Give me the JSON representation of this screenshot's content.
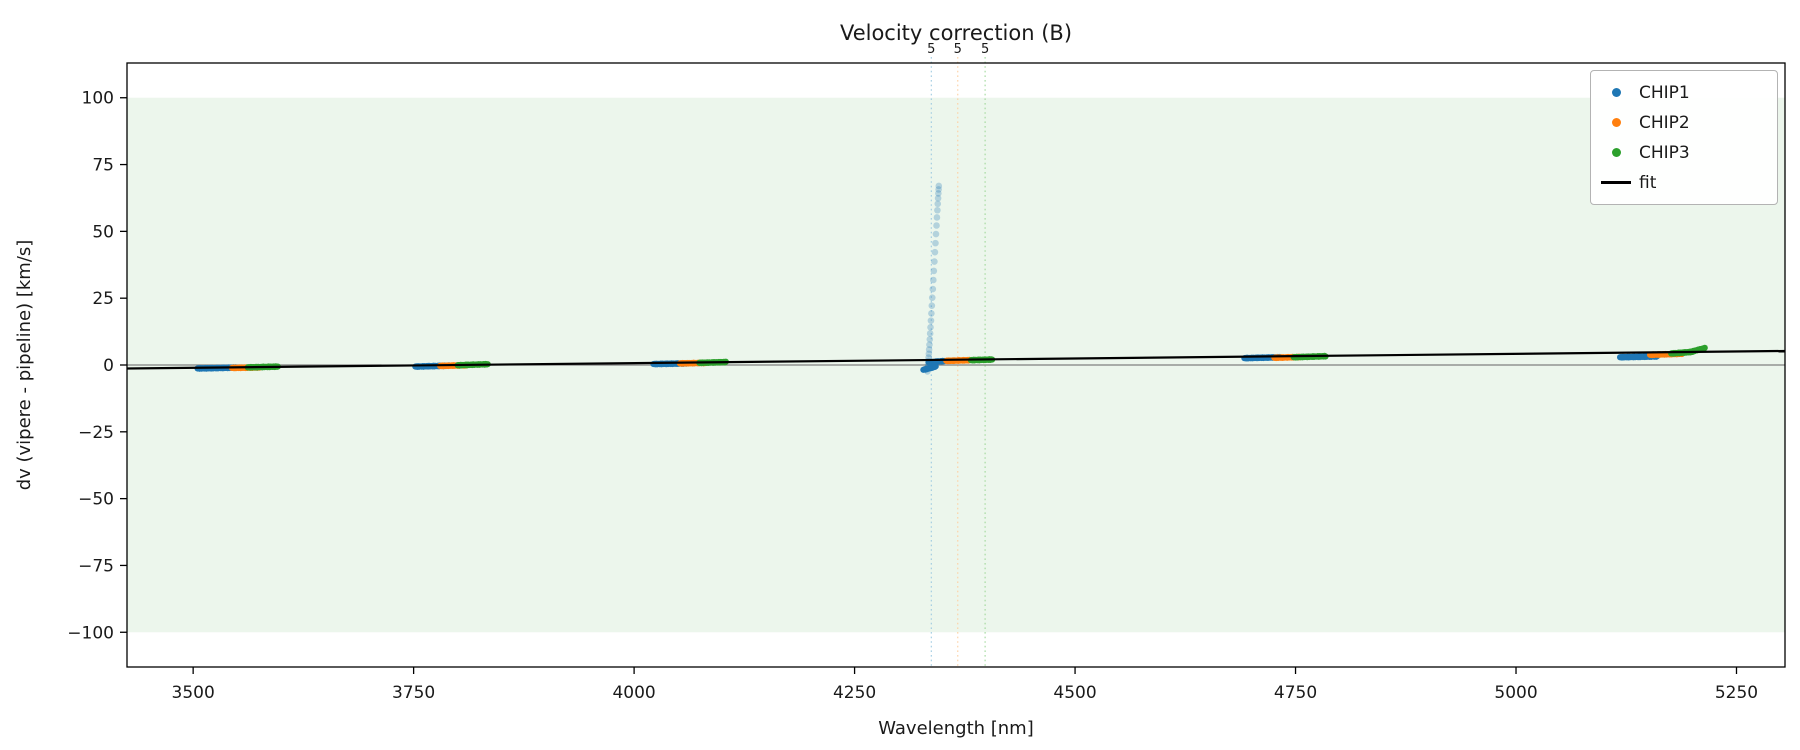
{
  "chart_data": {
    "type": "scatter",
    "title": "Velocity correction (B)",
    "xlabel": "Wavelength [nm]",
    "ylabel": "dv (vipere - pipeline) [km/s]",
    "xlim": [
      3425,
      5305
    ],
    "ylim": [
      -113,
      113
    ],
    "xticks": [
      3500,
      3750,
      4000,
      4250,
      4500,
      4750,
      5000,
      5250
    ],
    "yticks": [
      -100,
      -75,
      -50,
      -25,
      0,
      25,
      50,
      75,
      100
    ],
    "grid": false,
    "legend_position": "upper right",
    "background_band": {
      "ymin": -100,
      "ymax": 100,
      "color": "#ecf6ec"
    },
    "zero_line": {
      "y": 0,
      "color": "#808080"
    },
    "fit_line": {
      "name": "fit",
      "color": "#000000",
      "x": [
        3425,
        5305
      ],
      "y": [
        -1.3,
        5.25
      ]
    },
    "series": [
      {
        "name": "CHIP1",
        "color": "#1f77b4",
        "segments": [
          [
            3505,
            3548,
            -1.3,
            -1.0,
            40
          ],
          [
            3752,
            3790,
            -0.6,
            -0.25,
            38
          ],
          [
            4022,
            4060,
            0.35,
            0.6,
            38
          ],
          [
            4328,
            4342,
            -1.8,
            -0.6,
            14
          ],
          [
            4334,
            4352,
            1.0,
            1.5,
            18
          ],
          [
            4692,
            4732,
            2.55,
            2.9,
            40
          ],
          [
            5118,
            5160,
            2.9,
            3.2,
            40
          ]
        ]
      },
      {
        "name": "CHIP2",
        "color": "#ff7f0e",
        "segments": [
          [
            3544,
            3576,
            -1.1,
            -0.9,
            30
          ],
          [
            3780,
            3810,
            -0.35,
            -0.1,
            30
          ],
          [
            4052,
            4082,
            0.6,
            0.8,
            30
          ],
          [
            4354,
            4380,
            1.55,
            1.8,
            28
          ],
          [
            4726,
            4756,
            2.7,
            3.0,
            30
          ],
          [
            5152,
            5188,
            3.8,
            4.2,
            32
          ]
        ]
      },
      {
        "name": "CHIP3",
        "color": "#2ca02c",
        "segments": [
          [
            3562,
            3596,
            -0.9,
            -0.6,
            30
          ],
          [
            3800,
            3834,
            -0.1,
            0.3,
            30
          ],
          [
            4074,
            4104,
            0.8,
            1.1,
            28
          ],
          [
            4382,
            4406,
            1.8,
            2.05,
            24
          ],
          [
            4748,
            4784,
            2.9,
            3.3,
            34
          ],
          [
            5176,
            5200,
            4.3,
            4.9,
            24
          ],
          [
            5198,
            5214,
            4.9,
            6.3,
            16
          ]
        ]
      }
    ],
    "outlier_plume": {
      "series": "CHIP1",
      "color": "#1f77b4",
      "opacity": 0.28,
      "points": [
        [
          4332.6,
          -2.4
        ],
        [
          4332.9,
          -1.5
        ],
        [
          4333.1,
          -0.6
        ],
        [
          4333.3,
          0.4
        ],
        [
          4333.6,
          1.5
        ],
        [
          4333.9,
          2.8
        ],
        [
          4334.2,
          4.2
        ],
        [
          4334.5,
          5.8
        ],
        [
          4334.9,
          7.6
        ],
        [
          4335.3,
          9.6
        ],
        [
          4335.7,
          11.8
        ],
        [
          4336.1,
          14.1
        ],
        [
          4336.6,
          16.6
        ],
        [
          4337.1,
          19.3
        ],
        [
          4337.6,
          22.2
        ],
        [
          4338.1,
          25.2
        ],
        [
          4338.7,
          28.4
        ],
        [
          4339.3,
          31.8
        ],
        [
          4339.9,
          35.2
        ],
        [
          4340.5,
          38.7
        ],
        [
          4341.1,
          42.2
        ],
        [
          4341.7,
          45.6
        ],
        [
          4342.3,
          49.0
        ],
        [
          4342.9,
          52.2
        ],
        [
          4343.4,
          55.2
        ],
        [
          4343.9,
          57.9
        ],
        [
          4344.3,
          60.3
        ],
        [
          4344.7,
          62.4
        ],
        [
          4345.0,
          64.2
        ],
        [
          4345.3,
          65.7
        ],
        [
          4345.5,
          67.0
        ]
      ]
    },
    "vlines": [
      {
        "x": 4337,
        "label": "5",
        "line_color": "#9ecae1",
        "label_color": "#6baed6"
      },
      {
        "x": 4367,
        "label": "5",
        "line_color": "#fdd0a2",
        "label_color": "#fd8d3c"
      },
      {
        "x": 4398,
        "label": "5",
        "line_color": "#a1d99b",
        "label_color": "#41ab5d"
      }
    ],
    "legend": [
      {
        "label": "CHIP1",
        "marker": "dot",
        "color": "#1f77b4"
      },
      {
        "label": "CHIP2",
        "marker": "dot",
        "color": "#ff7f0e"
      },
      {
        "label": "CHIP3",
        "marker": "dot",
        "color": "#2ca02c"
      },
      {
        "label": "fit",
        "marker": "line",
        "color": "#000000"
      }
    ]
  }
}
